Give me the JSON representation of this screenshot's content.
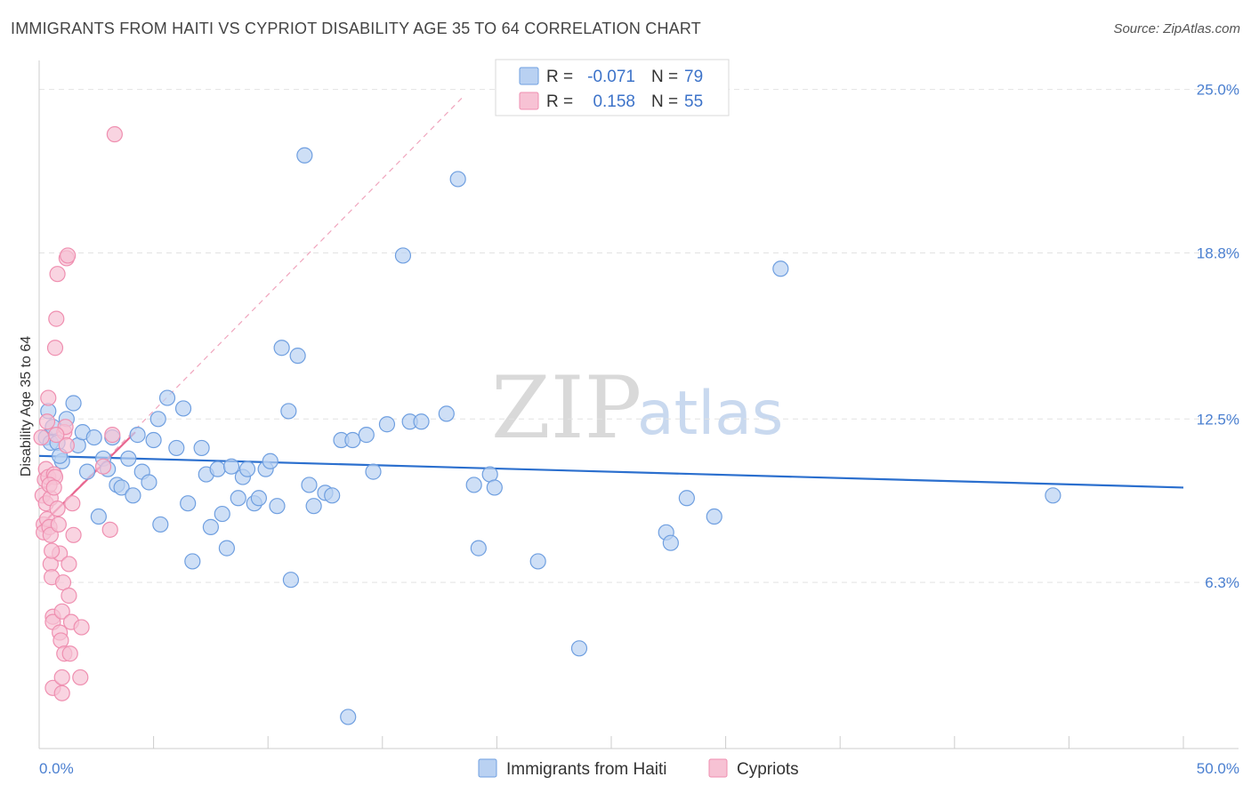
{
  "header": {
    "title": "IMMIGRANTS FROM HAITI VS CYPRIOT DISABILITY AGE 35 TO 64 CORRELATION CHART",
    "source": "Source: ZipAtlas.com"
  },
  "watermark": {
    "zip": "ZIP",
    "atlas": "atlas"
  },
  "chart_data": {
    "type": "scatter",
    "title": "IMMIGRANTS FROM HAITI VS CYPRIOT DISABILITY AGE 35 TO 64 CORRELATION CHART",
    "xlabel": "",
    "ylabel": "Disability Age 35 to 64",
    "xlim": [
      0,
      50
    ],
    "ylim": [
      0,
      26.1
    ],
    "x_tick_labels": {
      "min": "0.0%",
      "max": "50.0%"
    },
    "y_ticks": [
      {
        "value": 25.0,
        "label": "25.0%"
      },
      {
        "value": 18.8,
        "label": "18.8%"
      },
      {
        "value": 12.5,
        "label": "12.5%"
      },
      {
        "value": 6.3,
        "label": "6.3%"
      }
    ],
    "grid": true,
    "legend": {
      "position": "top-center",
      "rows": [
        {
          "r_label": "R =",
          "r_value": "-0.071",
          "n_label": "N =",
          "n_value": "79"
        },
        {
          "r_label": "R =",
          "r_value": "0.158",
          "n_label": "N =",
          "n_value": "55"
        }
      ]
    },
    "series": [
      {
        "name": "Immigrants from Haiti",
        "color": "#6f9fe0",
        "fill": "#b9d1f2",
        "trend": {
          "x": [
            0,
            50
          ],
          "y": [
            11.1,
            9.9
          ],
          "color": "#2b6fce"
        },
        "points": [
          [
            0.3,
            11.8
          ],
          [
            0.4,
            12.8
          ],
          [
            0.5,
            11.6
          ],
          [
            0.6,
            12.2
          ],
          [
            0.8,
            11.6
          ],
          [
            1.0,
            10.9
          ],
          [
            1.2,
            12.5
          ],
          [
            1.5,
            13.1
          ],
          [
            1.7,
            11.5
          ],
          [
            1.9,
            12.0
          ],
          [
            2.1,
            10.5
          ],
          [
            2.4,
            11.8
          ],
          [
            2.6,
            8.8
          ],
          [
            2.8,
            11.0
          ],
          [
            3.0,
            10.6
          ],
          [
            3.2,
            11.8
          ],
          [
            3.4,
            10.0
          ],
          [
            3.6,
            9.9
          ],
          [
            3.9,
            11.0
          ],
          [
            4.1,
            9.6
          ],
          [
            4.3,
            11.9
          ],
          [
            4.5,
            10.5
          ],
          [
            4.8,
            10.1
          ],
          [
            5.0,
            11.7
          ],
          [
            5.2,
            12.5
          ],
          [
            5.3,
            8.5
          ],
          [
            5.6,
            13.3
          ],
          [
            6.0,
            11.4
          ],
          [
            6.3,
            12.9
          ],
          [
            6.5,
            9.3
          ],
          [
            6.7,
            7.1
          ],
          [
            7.1,
            11.4
          ],
          [
            7.3,
            10.4
          ],
          [
            7.5,
            8.4
          ],
          [
            7.8,
            10.6
          ],
          [
            8.0,
            8.9
          ],
          [
            8.2,
            7.6
          ],
          [
            8.4,
            10.7
          ],
          [
            8.7,
            9.5
          ],
          [
            8.9,
            10.3
          ],
          [
            9.1,
            10.6
          ],
          [
            9.4,
            9.3
          ],
          [
            9.6,
            9.5
          ],
          [
            9.9,
            10.6
          ],
          [
            10.1,
            10.9
          ],
          [
            10.4,
            9.2
          ],
          [
            10.6,
            15.2
          ],
          [
            10.9,
            12.8
          ],
          [
            11.0,
            6.4
          ],
          [
            11.3,
            14.9
          ],
          [
            11.6,
            22.5
          ],
          [
            11.8,
            10.0
          ],
          [
            12.0,
            9.2
          ],
          [
            12.5,
            9.7
          ],
          [
            12.8,
            9.6
          ],
          [
            13.2,
            11.7
          ],
          [
            13.5,
            1.2
          ],
          [
            13.7,
            11.7
          ],
          [
            14.3,
            11.9
          ],
          [
            14.6,
            10.5
          ],
          [
            15.2,
            12.3
          ],
          [
            15.9,
            18.7
          ],
          [
            16.2,
            12.4
          ],
          [
            16.7,
            12.4
          ],
          [
            17.8,
            12.7
          ],
          [
            18.3,
            21.6
          ],
          [
            19.0,
            10.0
          ],
          [
            19.2,
            7.6
          ],
          [
            19.7,
            10.4
          ],
          [
            19.9,
            9.9
          ],
          [
            21.8,
            7.1
          ],
          [
            23.6,
            3.8
          ],
          [
            27.4,
            8.2
          ],
          [
            27.6,
            7.8
          ],
          [
            28.3,
            9.5
          ],
          [
            29.5,
            8.8
          ],
          [
            32.4,
            18.2
          ],
          [
            44.3,
            9.6
          ],
          [
            0.9,
            11.1
          ]
        ]
      },
      {
        "name": "Cypriots",
        "color": "#ef8fb0",
        "fill": "#f7c2d4",
        "trend": {
          "x": [
            0,
            4.2
          ],
          "y": [
            8.4,
            12.0
          ],
          "color": "#e8668f"
        },
        "trend_extended": {
          "x": [
            0,
            18.5
          ],
          "y": [
            8.4,
            24.7
          ],
          "color": "#f0a5bd"
        },
        "points": [
          [
            0.1,
            11.8
          ],
          [
            0.15,
            9.6
          ],
          [
            0.2,
            8.5
          ],
          [
            0.2,
            8.2
          ],
          [
            0.25,
            10.2
          ],
          [
            0.3,
            10.6
          ],
          [
            0.3,
            9.3
          ],
          [
            0.35,
            8.7
          ],
          [
            0.4,
            13.3
          ],
          [
            0.4,
            10.3
          ],
          [
            0.45,
            8.4
          ],
          [
            0.5,
            9.5
          ],
          [
            0.5,
            8.1
          ],
          [
            0.5,
            7.0
          ],
          [
            0.55,
            6.5
          ],
          [
            0.6,
            5.0
          ],
          [
            0.6,
            4.8
          ],
          [
            0.6,
            2.3
          ],
          [
            0.65,
            10.4
          ],
          [
            0.7,
            10.3
          ],
          [
            0.7,
            15.2
          ],
          [
            0.75,
            16.3
          ],
          [
            0.8,
            18.0
          ],
          [
            0.8,
            9.1
          ],
          [
            0.85,
            8.5
          ],
          [
            0.9,
            7.4
          ],
          [
            0.9,
            4.4
          ],
          [
            0.95,
            4.1
          ],
          [
            1.0,
            5.2
          ],
          [
            1.0,
            2.7
          ],
          [
            1.0,
            2.1
          ],
          [
            1.05,
            6.3
          ],
          [
            1.1,
            3.6
          ],
          [
            1.1,
            12.0
          ],
          [
            1.15,
            12.2
          ],
          [
            1.2,
            11.5
          ],
          [
            1.2,
            18.6
          ],
          [
            1.25,
            18.7
          ],
          [
            1.3,
            7.0
          ],
          [
            1.3,
            5.8
          ],
          [
            1.35,
            3.6
          ],
          [
            1.4,
            4.8
          ],
          [
            1.45,
            9.3
          ],
          [
            1.5,
            8.1
          ],
          [
            1.8,
            2.7
          ],
          [
            1.85,
            4.6
          ],
          [
            2.8,
            10.7
          ],
          [
            3.1,
            8.3
          ],
          [
            3.2,
            11.9
          ],
          [
            3.3,
            23.3
          ],
          [
            0.35,
            12.4
          ],
          [
            0.45,
            10.0
          ],
          [
            0.55,
            7.5
          ],
          [
            0.65,
            9.9
          ],
          [
            0.75,
            11.9
          ]
        ]
      }
    ]
  },
  "bottom_legend": [
    {
      "label": "Immigrants from Haiti"
    },
    {
      "label": "Cypriots"
    }
  ]
}
